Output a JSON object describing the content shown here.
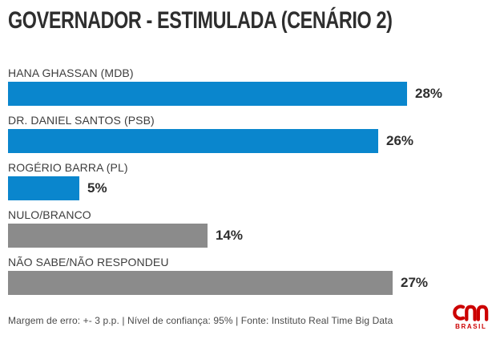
{
  "page": {
    "title": "GOVERNADOR - ESTIMULADA (CENÁRIO 2)",
    "footer": "Margem de erro: +- 3 p.p. | Nível de confiança: 95% | Fonte: Instituto Real Time Big Data",
    "logo": {
      "brand": "CNN",
      "region": "BRASIL",
      "color": "#cc0000"
    }
  },
  "chart_data": {
    "type": "bar",
    "orientation": "horizontal",
    "title": "GOVERNADOR - ESTIMULADA (CENÁRIO 2)",
    "categories": [
      "HANA GHASSAN (MDB)",
      "DR. DANIEL SANTOS (PSB)",
      "ROGÉRIO BARRA (PL)",
      "NULO/BRANCO",
      "NÃO SABE/NÃO RESPONDEU"
    ],
    "values": [
      28,
      26,
      5,
      14,
      27
    ],
    "value_labels": [
      "28%",
      "26%",
      "5%",
      "14%",
      "27%"
    ],
    "value_unit": "%",
    "bar_colors": [
      "#0a86cd",
      "#0a86cd",
      "#0a86cd",
      "#8b8b8b",
      "#8b8b8b"
    ],
    "colors": {
      "candidate_bar": "#0a86cd",
      "non_response_bar": "#8b8b8b"
    },
    "grid": false,
    "axes_visible": false,
    "margin_of_error": "+- 3 p.p.",
    "confidence_level": "95%",
    "source": "Instituto Real Time Big Data"
  }
}
